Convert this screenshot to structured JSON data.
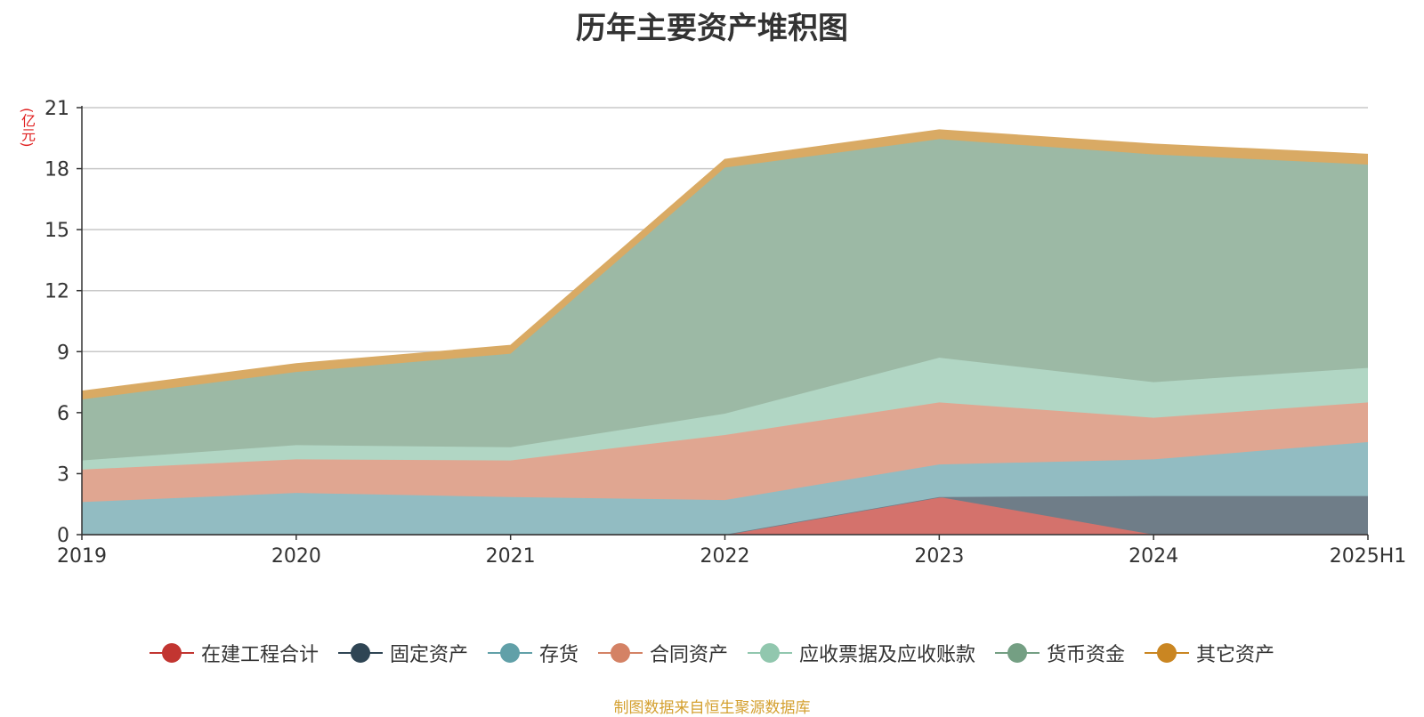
{
  "chart_data": {
    "type": "area",
    "stacked": true,
    "title": "历年主要资产堆积图",
    "ylabel": "(亿元)",
    "source": "制图数据来自恒生聚源数据库",
    "categories": [
      "2019",
      "2020",
      "2021",
      "2022",
      "2023",
      "2024",
      "2025H1"
    ],
    "ylim": [
      0,
      21
    ],
    "yticks": [
      0,
      3,
      6,
      9,
      12,
      15,
      18,
      21
    ],
    "grid": true,
    "legend_position": "bottom",
    "series": [
      {
        "name": "在建工程合计",
        "color": "#c23531",
        "fill": "#d4726c",
        "values": [
          0,
          0,
          0,
          0,
          1.85,
          0,
          0
        ]
      },
      {
        "name": "固定资产",
        "color": "#2f4554",
        "fill": "#6f7d88",
        "values": [
          0,
          0,
          0,
          0,
          0,
          1.9,
          1.9
        ]
      },
      {
        "name": "存货",
        "color": "#61a0a8",
        "fill": "#92bcc2",
        "values": [
          1.6,
          2.05,
          1.85,
          1.7,
          1.6,
          1.8,
          2.65
        ]
      },
      {
        "name": "合同资产",
        "color": "#d48265",
        "fill": "#e0a691",
        "values": [
          1.6,
          1.65,
          1.8,
          3.2,
          3.05,
          2.05,
          1.95
        ]
      },
      {
        "name": "应收票据及应收账款",
        "color": "#91c7ae",
        "fill": "#b1d6c4",
        "values": [
          0.45,
          0.7,
          0.65,
          1.05,
          2.2,
          1.75,
          1.7
        ]
      },
      {
        "name": "货币资金",
        "color": "#749f83",
        "fill": "#9cb9a5",
        "values": [
          3.0,
          3.6,
          4.6,
          12.1,
          10.75,
          11.2,
          10.0
        ]
      },
      {
        "name": "其它资产",
        "color": "#ca8622",
        "fill": "#d9aa64",
        "values": [
          0.4,
          0.4,
          0.4,
          0.4,
          0.45,
          0.5,
          0.5
        ]
      }
    ]
  }
}
